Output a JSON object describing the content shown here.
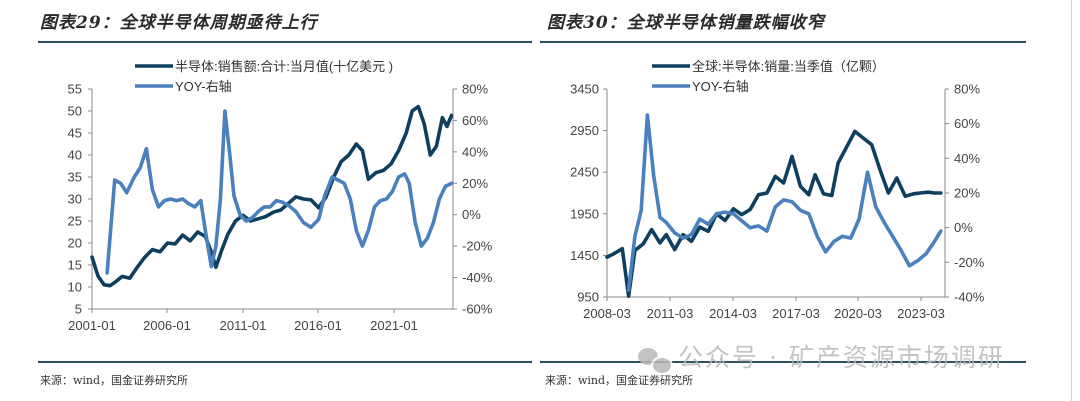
{
  "watermark": {
    "text": "公众号 · 矿产资源市场调研",
    "icon": "wechat-icon"
  },
  "colors": {
    "series_dark": "#0f3f5f",
    "series_light": "#4a80bd",
    "rule": "#2f4f63",
    "axis": "#888888",
    "text": "#444444"
  },
  "chart_data": [
    {
      "type": "line",
      "title": "图表29：全球半导体周期亟待上行",
      "source": "来源：wind，国金证券研究所",
      "legend": [
        "半导体:销售额:合计:当月值(十亿美元 )",
        "YOY-右轴"
      ],
      "legend_position": "top-left",
      "grid": false,
      "x_ticks": [
        "2001-01",
        "2006-01",
        "2011-01",
        "2016-01",
        "2021-01"
      ],
      "x_range": [
        2001.0,
        2024.9
      ],
      "y_left_ticks": [
        "55",
        "50",
        "45",
        "40",
        "35",
        "30",
        "25",
        "20",
        "15",
        "10",
        "5"
      ],
      "y_left_range": [
        5,
        55
      ],
      "y_right_ticks": [
        "80%",
        "60%",
        "40%",
        "20%",
        "0%",
        "-20%",
        "-40%",
        "-60%"
      ],
      "y_right_range": [
        -60,
        80
      ],
      "series": [
        {
          "name": "半导体:销售额:合计:当月值(十亿美元 )",
          "axis": "left",
          "x": [
            2001.0,
            2001.4,
            2001.8,
            2002.2,
            2002.6,
            2003.0,
            2003.5,
            2004.0,
            2004.5,
            2005.0,
            2005.5,
            2006.0,
            2006.5,
            2007.0,
            2007.5,
            2008.0,
            2008.5,
            2008.9,
            2009.2,
            2009.6,
            2010.0,
            2010.5,
            2011.0,
            2011.5,
            2012.0,
            2012.5,
            2013.0,
            2013.5,
            2014.0,
            2014.5,
            2015.0,
            2015.5,
            2016.0,
            2016.5,
            2017.0,
            2017.5,
            2018.0,
            2018.5,
            2018.9,
            2019.3,
            2019.8,
            2020.3,
            2020.8,
            2021.3,
            2021.8,
            2022.2,
            2022.6,
            2023.0,
            2023.4,
            2023.8,
            2024.2,
            2024.5,
            2024.8
          ],
          "values": [
            16.8,
            12.5,
            10.5,
            10.3,
            11.3,
            12.4,
            12.0,
            14.5,
            16.8,
            18.5,
            18.0,
            20.0,
            19.8,
            21.8,
            20.5,
            22.5,
            21.5,
            18.0,
            14.5,
            18.5,
            22.0,
            25.0,
            26.3,
            25.0,
            25.5,
            26.0,
            27.0,
            27.5,
            29.0,
            30.5,
            30.0,
            29.8,
            28.0,
            30.5,
            35.0,
            38.5,
            40.0,
            42.5,
            41.0,
            34.5,
            36.0,
            36.5,
            38.0,
            41.0,
            45.0,
            50.0,
            51.0,
            47.0,
            40.0,
            42.0,
            48.5,
            46.5,
            49.0
          ]
        },
        {
          "name": "YOY-右轴",
          "axis": "right",
          "x": [
            2002.0,
            2002.5,
            2002.9,
            2003.3,
            2003.8,
            2004.2,
            2004.6,
            2005.0,
            2005.4,
            2005.8,
            2006.2,
            2006.6,
            2007.0,
            2007.4,
            2007.8,
            2008.2,
            2008.5,
            2008.9,
            2009.2,
            2009.5,
            2009.8,
            2010.1,
            2010.4,
            2010.8,
            2011.2,
            2011.6,
            2012.0,
            2012.4,
            2012.8,
            2013.2,
            2013.6,
            2014.0,
            2014.5,
            2015.0,
            2015.5,
            2016.0,
            2016.4,
            2016.9,
            2017.3,
            2017.7,
            2018.1,
            2018.5,
            2018.9,
            2019.3,
            2019.7,
            2020.1,
            2020.5,
            2020.9,
            2021.3,
            2021.7,
            2022.0,
            2022.4,
            2022.8,
            2023.2,
            2023.6,
            2024.0,
            2024.4,
            2024.8
          ],
          "values": [
            -37,
            22,
            20,
            14,
            24,
            30,
            42,
            16,
            5,
            9,
            10,
            9,
            10,
            7,
            5,
            9,
            -10,
            -33,
            -20,
            10,
            66,
            40,
            12,
            0,
            -4,
            -2,
            2,
            5,
            5,
            9,
            8,
            6,
            2,
            -5,
            -8,
            -3,
            12,
            24,
            22,
            20,
            10,
            -10,
            -20,
            -10,
            5,
            9,
            10,
            15,
            24,
            26,
            20,
            -5,
            -20,
            -15,
            -5,
            10,
            18,
            20
          ]
        }
      ]
    },
    {
      "type": "line",
      "title": "图表30：全球半导体销量跌幅收窄",
      "source": "来源：wind，国金证券研究所",
      "legend": [
        "全球:半导体:销量:当季值（亿颗）",
        "YOY-右轴"
      ],
      "legend_position": "top-left",
      "grid": false,
      "x_ticks": [
        "2008-03",
        "2011-03",
        "2014-03",
        "2017-03",
        "2020-03",
        "2023-03"
      ],
      "x_range": [
        2008.17,
        2024.3
      ],
      "y_left_ticks": [
        "3450",
        "2950",
        "2450",
        "1950",
        "1450",
        "950"
      ],
      "y_left_range": [
        950,
        3450
      ],
      "y_right_ticks": [
        "80%",
        "60%",
        "40%",
        "20%",
        "0%",
        "-20%",
        "-40%"
      ],
      "y_right_range": [
        -40,
        80
      ],
      "series": [
        {
          "name": "全球:半导体:销量:当季值（亿颗）",
          "axis": "left",
          "x": [
            2008.17,
            2008.5,
            2008.9,
            2009.2,
            2009.5,
            2009.9,
            2010.3,
            2010.7,
            2011.0,
            2011.4,
            2011.8,
            2012.2,
            2012.6,
            2013.0,
            2013.4,
            2013.8,
            2014.2,
            2014.6,
            2015.0,
            2015.4,
            2015.8,
            2016.2,
            2016.6,
            2017.0,
            2017.4,
            2017.8,
            2018.1,
            2018.5,
            2018.9,
            2019.2,
            2019.6,
            2020.0,
            2020.4,
            2020.8,
            2021.2,
            2021.6,
            2022.0,
            2022.4,
            2022.8,
            2023.1,
            2023.5,
            2023.8,
            2024.1
          ],
          "values": [
            1430,
            1470,
            1530,
            960,
            1510,
            1590,
            1760,
            1600,
            1700,
            1520,
            1700,
            1620,
            1790,
            1740,
            1950,
            1870,
            2010,
            1940,
            2000,
            2180,
            2200,
            2400,
            2320,
            2640,
            2280,
            2180,
            2420,
            2190,
            2170,
            2560,
            2750,
            2940,
            2860,
            2780,
            2480,
            2200,
            2380,
            2160,
            2190,
            2200,
            2210,
            2200,
            2200
          ]
        },
        {
          "name": "YOY-右轴",
          "axis": "right",
          "x": [
            2009.2,
            2009.5,
            2009.8,
            2010.1,
            2010.4,
            2010.7,
            2011.0,
            2011.4,
            2011.8,
            2012.2,
            2012.6,
            2013.0,
            2013.4,
            2013.8,
            2014.2,
            2014.6,
            2015.0,
            2015.4,
            2015.8,
            2016.2,
            2016.6,
            2017.0,
            2017.4,
            2017.8,
            2018.2,
            2018.6,
            2019.0,
            2019.4,
            2019.8,
            2020.2,
            2020.6,
            2021.0,
            2021.4,
            2021.8,
            2022.2,
            2022.6,
            2023.0,
            2023.4,
            2023.8,
            2024.1
          ],
          "values": [
            -36,
            -5,
            10,
            65,
            30,
            6,
            3,
            -3,
            -6,
            -4,
            5,
            2,
            8,
            9,
            8,
            4,
            0,
            1,
            -2,
            12,
            16,
            15,
            10,
            8,
            -5,
            -14,
            -8,
            -5,
            -6,
            5,
            32,
            12,
            3,
            -5,
            -13,
            -22,
            -19,
            -15,
            -8,
            -2
          ]
        }
      ]
    }
  ]
}
